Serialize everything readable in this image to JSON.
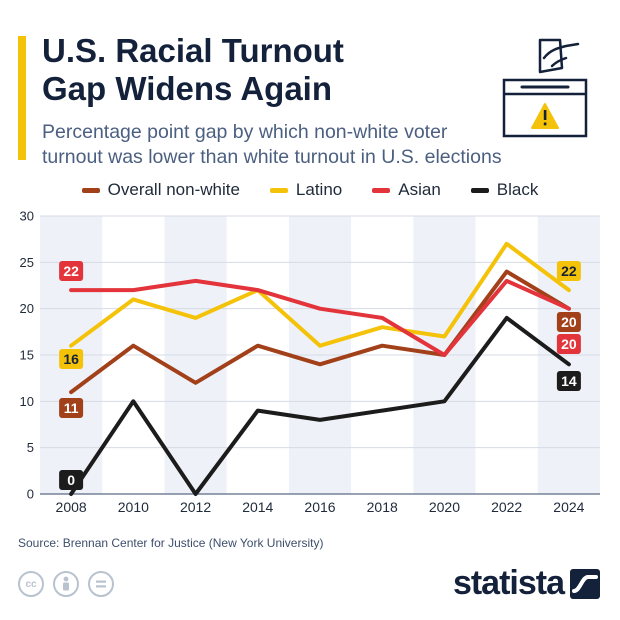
{
  "header": {
    "title_line1": "U.S. Racial Turnout",
    "title_line2": "Gap Widens Again",
    "subtitle_line1": "Percentage point gap by which non-white voter",
    "subtitle_line2": "turnout was lower than white turnout in U.S. elections"
  },
  "icons": {
    "ballot": "ballot-box-warning-icon",
    "license": [
      "creative-commons-icon",
      "attribution-icon",
      "no-derivatives-icon"
    ],
    "brand": "statista-logo-icon"
  },
  "footer": {
    "source": "Source: Brennan Center for Justice (New York University)",
    "brand": "statista"
  },
  "chart_data": {
    "type": "line",
    "x": [
      "2008",
      "2010",
      "2012",
      "2014",
      "2016",
      "2018",
      "2020",
      "2022",
      "2024"
    ],
    "ylim": [
      0,
      30
    ],
    "yticks": [
      0,
      5,
      10,
      15,
      20,
      25,
      30
    ],
    "grid": true,
    "legend_position": "top",
    "series": [
      {
        "name": "Overall non-white",
        "color": "#a2401a",
        "values": [
          11,
          16,
          12,
          16,
          14,
          16,
          15,
          24,
          20
        ],
        "labels": {
          "first": "11",
          "last": "20"
        }
      },
      {
        "name": "Latino",
        "color": "#f5c20a",
        "values": [
          16,
          21,
          19,
          22,
          16,
          18,
          17,
          27,
          22
        ],
        "labels": {
          "first": "16",
          "last": "22"
        }
      },
      {
        "name": "Asian",
        "color": "#e2343a",
        "values": [
          22,
          22,
          23,
          22,
          20,
          19,
          15,
          23,
          20
        ],
        "labels": {
          "first": "22",
          "last": "20"
        }
      },
      {
        "name": "Black",
        "color": "#1c1c1c",
        "values": [
          0,
          10,
          0,
          9,
          8,
          9,
          10,
          19,
          14
        ],
        "labels": {
          "first": "0",
          "last": "14"
        }
      }
    ]
  }
}
